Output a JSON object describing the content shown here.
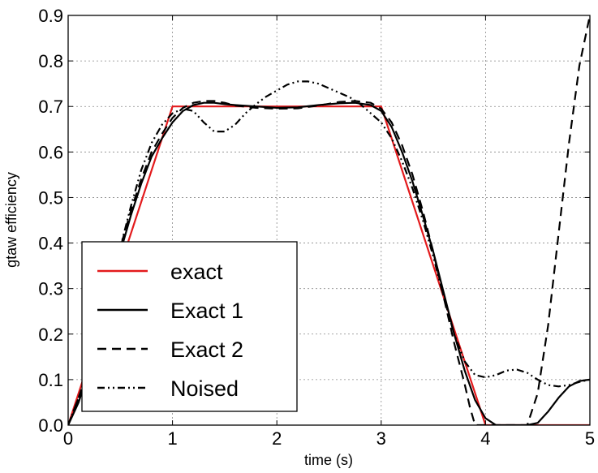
{
  "chart_data": {
    "type": "line",
    "xlabel": "time (s)",
    "ylabel": "gtaw efficiency",
    "xlim": [
      0,
      5
    ],
    "ylim": [
      0,
      0.9
    ],
    "xticks": [
      "0",
      "1",
      "2",
      "3",
      "4",
      "5"
    ],
    "yticks": [
      "0.0",
      "0.1",
      "0.2",
      "0.3",
      "0.4",
      "0.5",
      "0.6",
      "0.7",
      "0.8",
      "0.9"
    ],
    "grid": true,
    "legend_position": "lower-left",
    "series": [
      {
        "name": "exact",
        "color": "#e31a1c",
        "style": "solid",
        "points": [
          [
            0,
            0
          ],
          [
            1,
            0.7
          ],
          [
            3,
            0.7
          ],
          [
            4,
            0
          ],
          [
            5,
            0
          ]
        ]
      },
      {
        "name": "Exact 1",
        "color": "#000000",
        "style": "solid",
        "points": [
          [
            0,
            0
          ],
          [
            0.1,
            0.05
          ],
          [
            0.2,
            0.12
          ],
          [
            0.3,
            0.2
          ],
          [
            0.4,
            0.29
          ],
          [
            0.5,
            0.38
          ],
          [
            0.6,
            0.46
          ],
          [
            0.7,
            0.53
          ],
          [
            0.8,
            0.59
          ],
          [
            0.9,
            0.63
          ],
          [
            1.0,
            0.665
          ],
          [
            1.1,
            0.69
          ],
          [
            1.2,
            0.703
          ],
          [
            1.3,
            0.708
          ],
          [
            1.4,
            0.708
          ],
          [
            1.5,
            0.705
          ],
          [
            1.6,
            0.703
          ],
          [
            1.8,
            0.7
          ],
          [
            2.0,
            0.697
          ],
          [
            2.2,
            0.698
          ],
          [
            2.4,
            0.703
          ],
          [
            2.6,
            0.707
          ],
          [
            2.75,
            0.708
          ],
          [
            2.9,
            0.703
          ],
          [
            3.0,
            0.69
          ],
          [
            3.1,
            0.655
          ],
          [
            3.2,
            0.6
          ],
          [
            3.3,
            0.535
          ],
          [
            3.4,
            0.46
          ],
          [
            3.5,
            0.38
          ],
          [
            3.6,
            0.29
          ],
          [
            3.7,
            0.2
          ],
          [
            3.8,
            0.12
          ],
          [
            3.9,
            0.055
          ],
          [
            4.0,
            0.015
          ],
          [
            4.1,
            0.0
          ],
          [
            4.2,
            0.0
          ],
          [
            4.4,
            0.0
          ],
          [
            4.5,
            0.005
          ],
          [
            4.6,
            0.03
          ],
          [
            4.7,
            0.06
          ],
          [
            4.8,
            0.085
          ],
          [
            4.9,
            0.097
          ],
          [
            5.0,
            0.1
          ]
        ]
      },
      {
        "name": "Exact 2",
        "color": "#000000",
        "style": "dashed",
        "points": [
          [
            0,
            0
          ],
          [
            0.1,
            0.06
          ],
          [
            0.2,
            0.13
          ],
          [
            0.3,
            0.21
          ],
          [
            0.4,
            0.3
          ],
          [
            0.5,
            0.39
          ],
          [
            0.6,
            0.47
          ],
          [
            0.7,
            0.54
          ],
          [
            0.8,
            0.6
          ],
          [
            0.9,
            0.64
          ],
          [
            1.0,
            0.675
          ],
          [
            1.1,
            0.697
          ],
          [
            1.2,
            0.708
          ],
          [
            1.3,
            0.712
          ],
          [
            1.4,
            0.712
          ],
          [
            1.5,
            0.708
          ],
          [
            1.6,
            0.702
          ],
          [
            1.8,
            0.697
          ],
          [
            2.0,
            0.695
          ],
          [
            2.2,
            0.696
          ],
          [
            2.4,
            0.702
          ],
          [
            2.6,
            0.71
          ],
          [
            2.75,
            0.712
          ],
          [
            2.9,
            0.708
          ],
          [
            3.0,
            0.695
          ],
          [
            3.1,
            0.665
          ],
          [
            3.2,
            0.615
          ],
          [
            3.3,
            0.55
          ],
          [
            3.4,
            0.47
          ],
          [
            3.5,
            0.38
          ],
          [
            3.6,
            0.28
          ],
          [
            3.7,
            0.18
          ],
          [
            3.8,
            0.09
          ],
          [
            3.85,
            0.04
          ],
          [
            3.9,
            0.0
          ],
          [
            4.4,
            0.0
          ],
          [
            4.5,
            0.07
          ],
          [
            4.6,
            0.22
          ],
          [
            4.7,
            0.42
          ],
          [
            4.8,
            0.62
          ],
          [
            4.9,
            0.79
          ],
          [
            5.0,
            0.9
          ]
        ]
      },
      {
        "name": "Noised",
        "color": "#000000",
        "style": "dashdotdot",
        "points": [
          [
            0,
            0
          ],
          [
            0.1,
            0.06
          ],
          [
            0.2,
            0.13
          ],
          [
            0.3,
            0.21
          ],
          [
            0.4,
            0.3
          ],
          [
            0.5,
            0.39
          ],
          [
            0.6,
            0.48
          ],
          [
            0.7,
            0.56
          ],
          [
            0.8,
            0.62
          ],
          [
            0.9,
            0.66
          ],
          [
            1.0,
            0.685
          ],
          [
            1.1,
            0.695
          ],
          [
            1.2,
            0.69
          ],
          [
            1.3,
            0.665
          ],
          [
            1.4,
            0.645
          ],
          [
            1.5,
            0.645
          ],
          [
            1.6,
            0.66
          ],
          [
            1.7,
            0.685
          ],
          [
            1.8,
            0.705
          ],
          [
            1.9,
            0.722
          ],
          [
            2.0,
            0.735
          ],
          [
            2.1,
            0.748
          ],
          [
            2.2,
            0.755
          ],
          [
            2.3,
            0.755
          ],
          [
            2.4,
            0.75
          ],
          [
            2.5,
            0.74
          ],
          [
            2.6,
            0.73
          ],
          [
            2.7,
            0.72
          ],
          [
            2.8,
            0.705
          ],
          [
            2.9,
            0.685
          ],
          [
            3.0,
            0.665
          ],
          [
            3.1,
            0.63
          ],
          [
            3.2,
            0.58
          ],
          [
            3.3,
            0.52
          ],
          [
            3.4,
            0.45
          ],
          [
            3.5,
            0.37
          ],
          [
            3.6,
            0.28
          ],
          [
            3.7,
            0.2
          ],
          [
            3.8,
            0.14
          ],
          [
            3.9,
            0.11
          ],
          [
            4.0,
            0.105
          ],
          [
            4.1,
            0.11
          ],
          [
            4.2,
            0.12
          ],
          [
            4.3,
            0.122
          ],
          [
            4.4,
            0.115
          ],
          [
            4.5,
            0.1
          ],
          [
            4.6,
            0.088
          ],
          [
            4.7,
            0.085
          ],
          [
            4.8,
            0.088
          ],
          [
            4.9,
            0.095
          ],
          [
            5.0,
            0.1
          ]
        ]
      }
    ]
  }
}
